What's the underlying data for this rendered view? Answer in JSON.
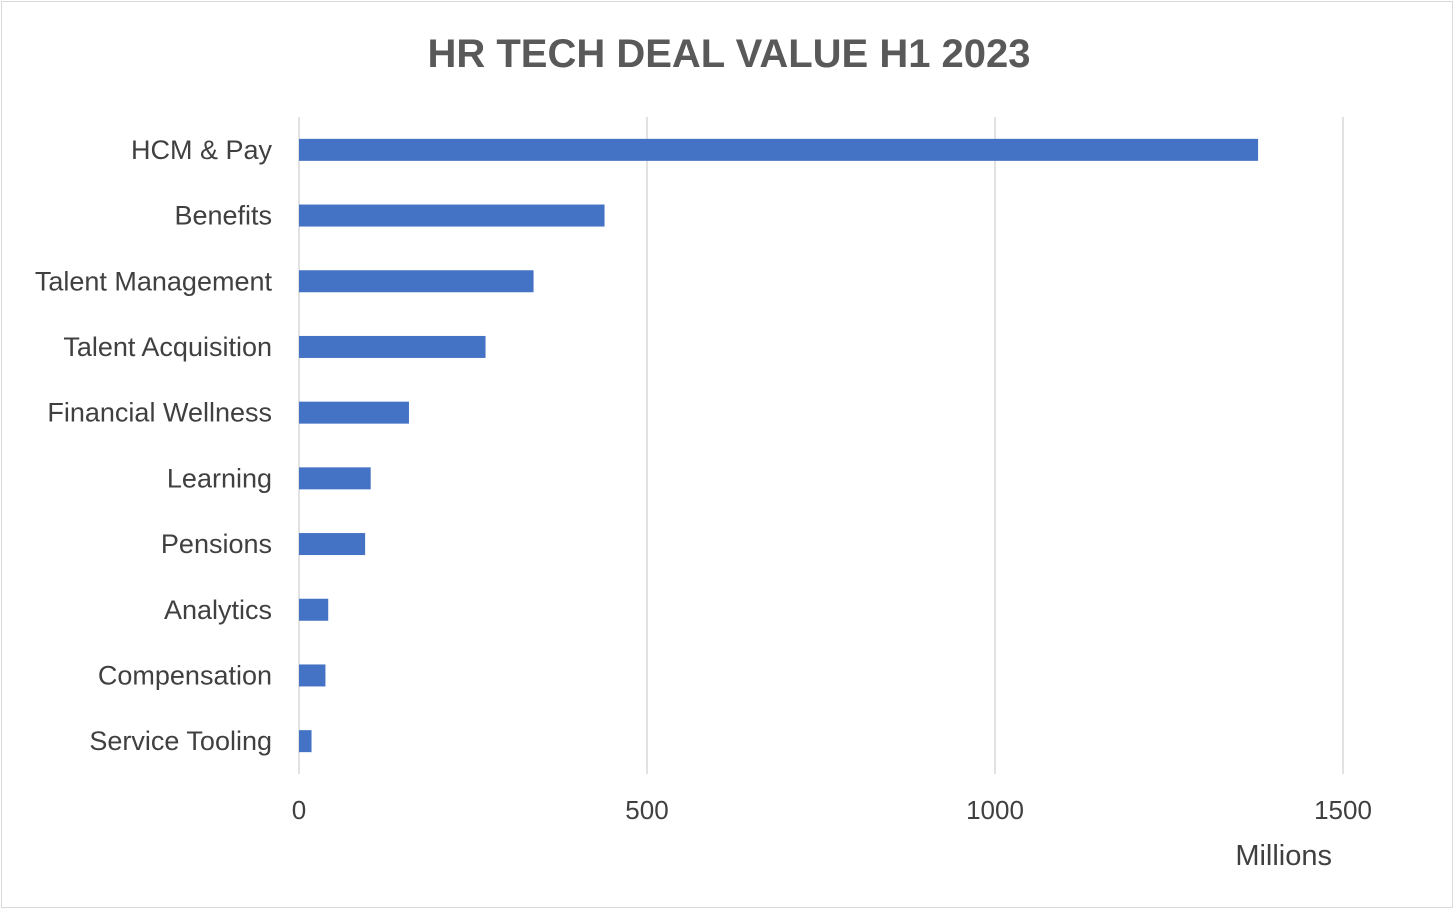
{
  "chart_data": {
    "type": "bar",
    "orientation": "horizontal",
    "title": "HR TECH DEAL VALUE H1 2023",
    "xlabel": "Millions",
    "ylabel": "",
    "xlim": [
      0,
      1500
    ],
    "ticks": [
      "0",
      "500",
      "1000",
      "1500"
    ],
    "tick_values": [
      0,
      500,
      1000,
      1500
    ],
    "grid": "vertical",
    "bar_color": "#4472c4",
    "grid_color": "#d9d9d9",
    "categories": [
      "HCM & Pay",
      "Benefits",
      "Talent Management",
      "Talent Acquisition",
      "Financial Wellness",
      "Learning",
      "Pensions",
      "Analytics",
      "Compensation",
      "Service Tooling"
    ],
    "values": [
      1378,
      439,
      337,
      268,
      158,
      103,
      95,
      42,
      38,
      18
    ]
  }
}
